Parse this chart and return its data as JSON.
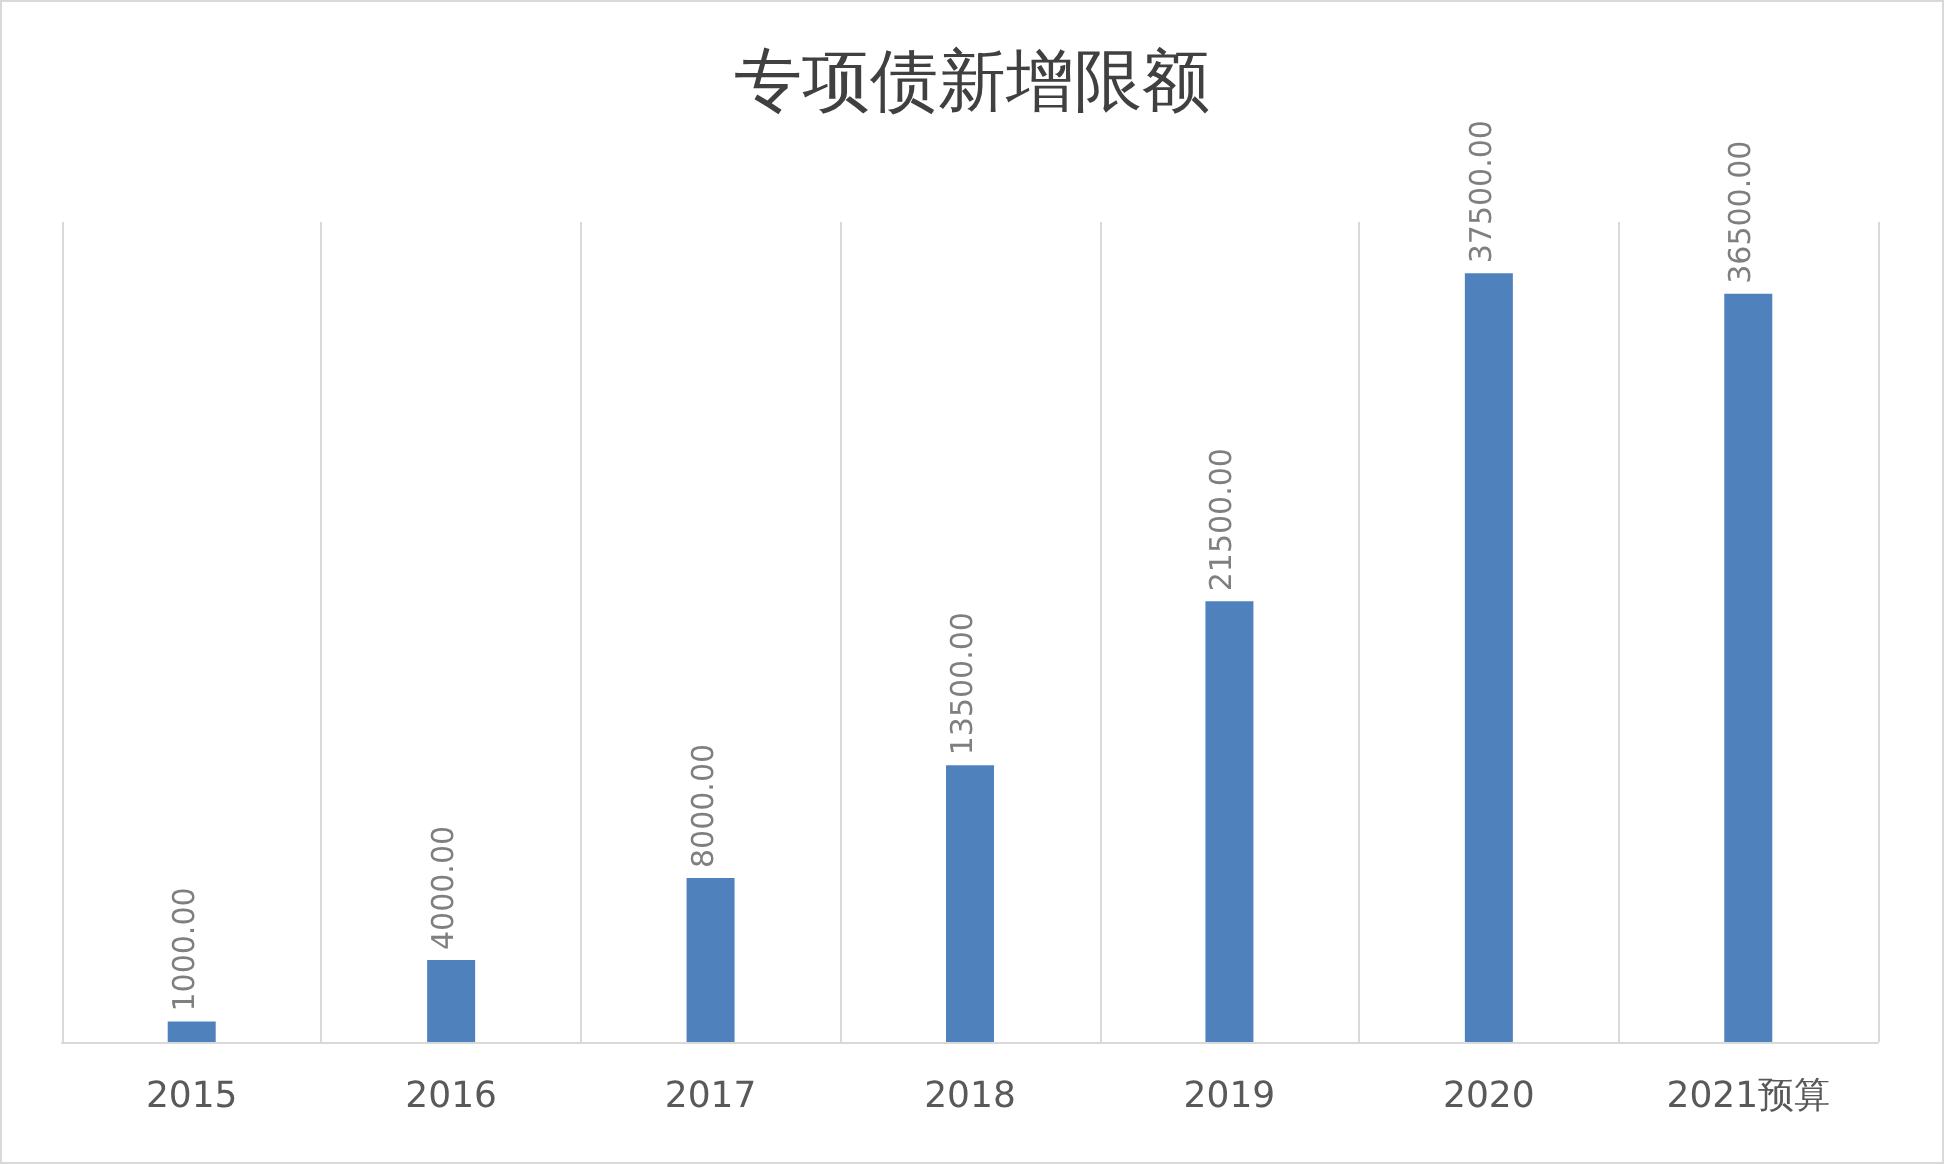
{
  "chart_data": {
    "type": "bar",
    "title": "专项债新增限额",
    "categories": [
      "2015",
      "2016",
      "2017",
      "2018",
      "2019",
      "2020",
      "2021预算"
    ],
    "values": [
      1000,
      4000,
      8000,
      13500,
      21500,
      37500,
      36500
    ],
    "value_labels": [
      "1000.00",
      "4000.00",
      "8000.00",
      "13500.00",
      "21500.00",
      "37500.00",
      "36500.00"
    ],
    "color": "#4f81bd",
    "grid": "x",
    "tick_labels": "x"
  }
}
